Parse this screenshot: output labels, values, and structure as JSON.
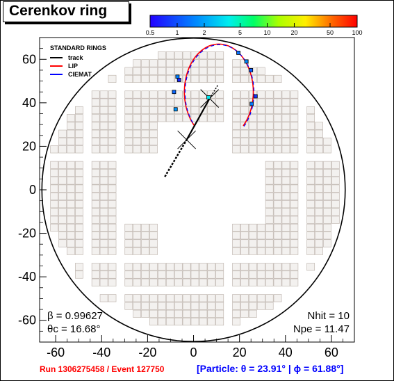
{
  "title": "Cerenkov ring",
  "colorbar": {
    "tick_labels": [
      "0.5",
      "1",
      "2",
      "5",
      "10",
      "20",
      "50",
      "100"
    ],
    "tick_values": [
      0.5,
      1,
      2,
      5,
      10,
      20,
      50,
      100
    ],
    "range": [
      0.5,
      100
    ],
    "scale": "log"
  },
  "legend": {
    "header": "STANDARD RINGS",
    "entries": [
      {
        "label": "track",
        "color": "#000000"
      },
      {
        "label": "LIP",
        "color": "#ff0000"
      },
      {
        "label": "CIEMAT",
        "color": "#0000ff"
      }
    ]
  },
  "stats": {
    "beta_label": "β = 0.99627",
    "theta_label": "θc = 16.68°",
    "nhit_label": "Nhit = 10",
    "npe_label": "Npe = 11.47"
  },
  "footer": {
    "run_event": "Run 1306275458 / Event 127750",
    "particle": "[Particle: θ = 23.91° | ϕ = 61.88°]"
  },
  "chart_data": {
    "type": "scatter",
    "title": "Cerenkov ring",
    "xlim": [
      -67,
      70
    ],
    "ylim": [
      -70,
      70
    ],
    "xticks": [
      -60,
      -40,
      -20,
      0,
      20,
      40,
      60
    ],
    "yticks": [
      -60,
      -40,
      -20,
      0,
      20,
      40,
      60
    ],
    "xtick_labels": [
      "-60",
      "-40",
      "-20",
      "0",
      "20",
      "40",
      "60"
    ],
    "ytick_labels": [
      "-60",
      "-40",
      "-20",
      "0",
      "20",
      "40",
      "60"
    ],
    "detector_radius": 66,
    "ring": {
      "cx": 11,
      "cy": 45,
      "rx": 15,
      "ry": 22
    },
    "track": {
      "entry": [
        -12.5,
        6
      ],
      "mid": [
        -3,
        23
      ],
      "impact": [
        7,
        42
      ],
      "exit": [
        10.5,
        48
      ]
    },
    "hits": [
      {
        "x": -8.5,
        "y": 45,
        "value": 1.2
      },
      {
        "x": -7,
        "y": 52,
        "value": 1.5
      },
      {
        "x": -6.3,
        "y": 50.5,
        "value": 0.7
      },
      {
        "x": -7.8,
        "y": 37,
        "value": 1.8
      },
      {
        "x": 19.5,
        "y": 63,
        "value": 1.3
      },
      {
        "x": 23,
        "y": 59,
        "value": 1.6
      },
      {
        "x": 25,
        "y": 55,
        "value": 1.1
      },
      {
        "x": 27,
        "y": 43,
        "value": 0.8
      },
      {
        "x": 25.3,
        "y": 39.5,
        "value": 1.4
      },
      {
        "x": 6.5,
        "y": 42.5,
        "value": 3.5
      }
    ]
  }
}
